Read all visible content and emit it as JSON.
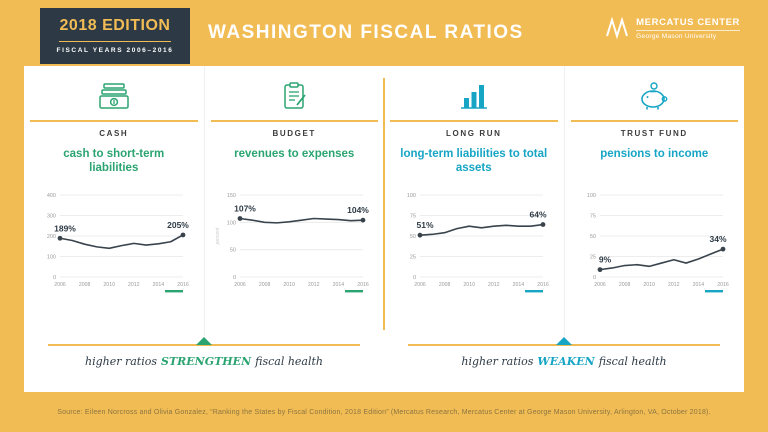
{
  "header": {
    "edition": "2018 EDITION",
    "fiscal_years": "FISCAL YEARS 2006–2016",
    "title": "WASHINGTON FISCAL RATIOS",
    "logo": {
      "name": "MERCATUS CENTER",
      "sub": "George Mason University"
    }
  },
  "columns": [
    {
      "label": "CASH",
      "title": "cash to short-term liabilities",
      "accent": "#2BA471"
    },
    {
      "label": "BUDGET",
      "title": "revenues to expenses",
      "accent": "#2BA471"
    },
    {
      "label": "LONG RUN",
      "title": "long-term liabilities to total assets",
      "accent": "#17A5C5"
    },
    {
      "label": "TRUST FUND",
      "title": "pensions to income",
      "accent": "#17A5C5"
    }
  ],
  "chart_data": [
    {
      "type": "line",
      "title": "cash to short-term liabilities",
      "x": [
        2006,
        2007,
        2008,
        2009,
        2010,
        2011,
        2012,
        2013,
        2014,
        2015,
        2016
      ],
      "values": [
        189,
        178,
        160,
        147,
        140,
        153,
        164,
        156,
        162,
        172,
        205
      ],
      "ylim": [
        0,
        400
      ],
      "yticks": [
        0,
        100,
        200,
        300,
        400
      ],
      "xticks": [
        "2006",
        "2008",
        "2010",
        "2012",
        "2014",
        "2016"
      ],
      "start_label": "189%",
      "end_label": "205%",
      "ylabel": "",
      "accent": "#2BA471",
      "grid": true,
      "legend": "none"
    },
    {
      "type": "line",
      "title": "revenues to expenses",
      "x": [
        2006,
        2007,
        2008,
        2009,
        2010,
        2011,
        2012,
        2013,
        2014,
        2015,
        2016
      ],
      "values": [
        107,
        104,
        100,
        99,
        101,
        104,
        107,
        106,
        105,
        103,
        104
      ],
      "ylim": [
        0,
        150
      ],
      "yticks": [
        0,
        50,
        100,
        150
      ],
      "xticks": [
        "2006",
        "2008",
        "2010",
        "2012",
        "2014",
        "2016"
      ],
      "start_label": "107%",
      "end_label": "104%",
      "ylabel": "percent",
      "accent": "#2BA471",
      "grid": true,
      "legend": "none"
    },
    {
      "type": "line",
      "title": "long-term liabilities to total assets",
      "x": [
        2006,
        2007,
        2008,
        2009,
        2010,
        2011,
        2012,
        2013,
        2014,
        2015,
        2016
      ],
      "values": [
        51,
        52,
        54,
        59,
        62,
        60,
        62,
        63,
        62,
        62,
        64
      ],
      "ylim": [
        0,
        100
      ],
      "yticks": [
        0,
        25,
        50,
        75,
        100
      ],
      "xticks": [
        "2006",
        "2008",
        "2010",
        "2012",
        "2014",
        "2016"
      ],
      "start_label": "51%",
      "end_label": "64%",
      "ylabel": "",
      "accent": "#17A5C5",
      "grid": true,
      "legend": "none"
    },
    {
      "type": "line",
      "title": "pensions to income",
      "x": [
        2006,
        2007,
        2008,
        2009,
        2010,
        2011,
        2012,
        2013,
        2014,
        2015,
        2016
      ],
      "values": [
        9,
        11,
        14,
        15,
        13,
        17,
        21,
        17,
        22,
        28,
        34
      ],
      "ylim": [
        0,
        100
      ],
      "yticks": [
        0,
        25,
        50,
        75,
        100
      ],
      "xticks": [
        "2006",
        "2008",
        "2010",
        "2012",
        "2014",
        "2016"
      ],
      "start_label": "9%",
      "end_label": "34%",
      "ylabel": "",
      "accent": "#17A5C5",
      "grid": true,
      "legend": "none"
    }
  ],
  "footer": {
    "left": {
      "prefix": "higher ratios",
      "keyword": "STRENGTHEN",
      "suffix": "fiscal health",
      "color": "#2BA471"
    },
    "right": {
      "prefix": "higher ratios",
      "keyword": "WEAKEN",
      "suffix": "fiscal health",
      "color": "#17A5C5"
    }
  },
  "source": "Source: Eileen Norcross and Olivia Gonzalez, “Ranking the States by Fiscal Condition, 2018 Edition” (Mercatus Research, Mercatus Center at George Mason University, Arlington, VA, October 2018)."
}
